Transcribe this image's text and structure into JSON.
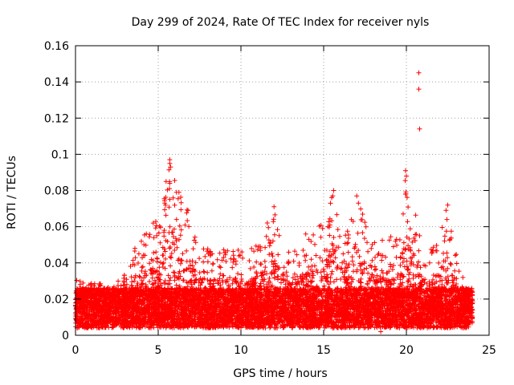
{
  "chart_data": {
    "type": "scatter",
    "title": "Day 299 of 2024, Rate Of TEC Index for receiver nyls",
    "xlabel": "GPS time / hours",
    "ylabel": "ROTI / TECUs",
    "xlim": [
      0,
      25
    ],
    "ylim": [
      0,
      0.16
    ],
    "x_ticks": [
      0,
      5,
      10,
      15,
      20,
      25
    ],
    "x_tick_labels": [
      "0",
      "5",
      "10",
      "15",
      "20",
      "25"
    ],
    "y_ticks": [
      0,
      0.02,
      0.04,
      0.06,
      0.08,
      0.1,
      0.12,
      0.14,
      0.16
    ],
    "y_tick_labels": [
      "0",
      "0.02",
      "0.04",
      "0.06",
      "0.08",
      "0.1",
      "0.12",
      "0.14",
      "0.16"
    ],
    "grid": true,
    "marker": "plus",
    "marker_color": "#ff0000",
    "data_range_hours": [
      0,
      24
    ],
    "baseline_level": 0.015,
    "activity_envelope": [
      {
        "x": 0.0,
        "ymax": 0.033
      },
      {
        "x": 1.0,
        "ymax": 0.03
      },
      {
        "x": 2.0,
        "ymax": 0.027
      },
      {
        "x": 3.0,
        "ymax": 0.034
      },
      {
        "x": 4.0,
        "ymax": 0.058
      },
      {
        "x": 4.6,
        "ymax": 0.062
      },
      {
        "x": 5.2,
        "ymax": 0.073
      },
      {
        "x": 5.7,
        "ymax": 0.097
      },
      {
        "x": 6.3,
        "ymax": 0.079
      },
      {
        "x": 6.8,
        "ymax": 0.068
      },
      {
        "x": 7.5,
        "ymax": 0.05
      },
      {
        "x": 8.5,
        "ymax": 0.047
      },
      {
        "x": 9.5,
        "ymax": 0.05
      },
      {
        "x": 10.5,
        "ymax": 0.046
      },
      {
        "x": 11.5,
        "ymax": 0.06
      },
      {
        "x": 12.0,
        "ymax": 0.071
      },
      {
        "x": 13.0,
        "ymax": 0.045
      },
      {
        "x": 14.0,
        "ymax": 0.059
      },
      {
        "x": 15.0,
        "ymax": 0.062
      },
      {
        "x": 15.6,
        "ymax": 0.08
      },
      {
        "x": 16.3,
        "ymax": 0.056
      },
      {
        "x": 17.0,
        "ymax": 0.077
      },
      {
        "x": 17.6,
        "ymax": 0.061
      },
      {
        "x": 18.5,
        "ymax": 0.057
      },
      {
        "x": 19.5,
        "ymax": 0.053
      },
      {
        "x": 20.0,
        "ymax": 0.091
      },
      {
        "x": 21.0,
        "ymax": 0.048
      },
      {
        "x": 22.0,
        "ymax": 0.055
      },
      {
        "x": 22.5,
        "ymax": 0.072
      },
      {
        "x": 23.2,
        "ymax": 0.035
      },
      {
        "x": 24.0,
        "ymax": 0.025
      }
    ],
    "notable_points": [
      {
        "x": 5.7,
        "y": 0.097
      },
      {
        "x": 5.7,
        "y": 0.095
      },
      {
        "x": 5.75,
        "y": 0.093
      },
      {
        "x": 5.7,
        "y": 0.084
      },
      {
        "x": 6.25,
        "y": 0.079
      },
      {
        "x": 5.4,
        "y": 0.073
      },
      {
        "x": 4.7,
        "y": 0.062
      },
      {
        "x": 6.8,
        "y": 0.069
      },
      {
        "x": 12.0,
        "y": 0.071
      },
      {
        "x": 15.6,
        "y": 0.08
      },
      {
        "x": 15.55,
        "y": 0.077
      },
      {
        "x": 17.0,
        "y": 0.077
      },
      {
        "x": 17.1,
        "y": 0.073
      },
      {
        "x": 19.95,
        "y": 0.091
      },
      {
        "x": 20.0,
        "y": 0.088
      },
      {
        "x": 19.95,
        "y": 0.078
      },
      {
        "x": 20.75,
        "y": 0.145
      },
      {
        "x": 20.75,
        "y": 0.136
      },
      {
        "x": 20.8,
        "y": 0.114
      },
      {
        "x": 20.8,
        "y": 0.055
      },
      {
        "x": 22.5,
        "y": 0.072
      },
      {
        "x": 22.4,
        "y": 0.069
      },
      {
        "x": 22.45,
        "y": 0.064
      },
      {
        "x": 18.45,
        "y": 0.002
      }
    ]
  }
}
